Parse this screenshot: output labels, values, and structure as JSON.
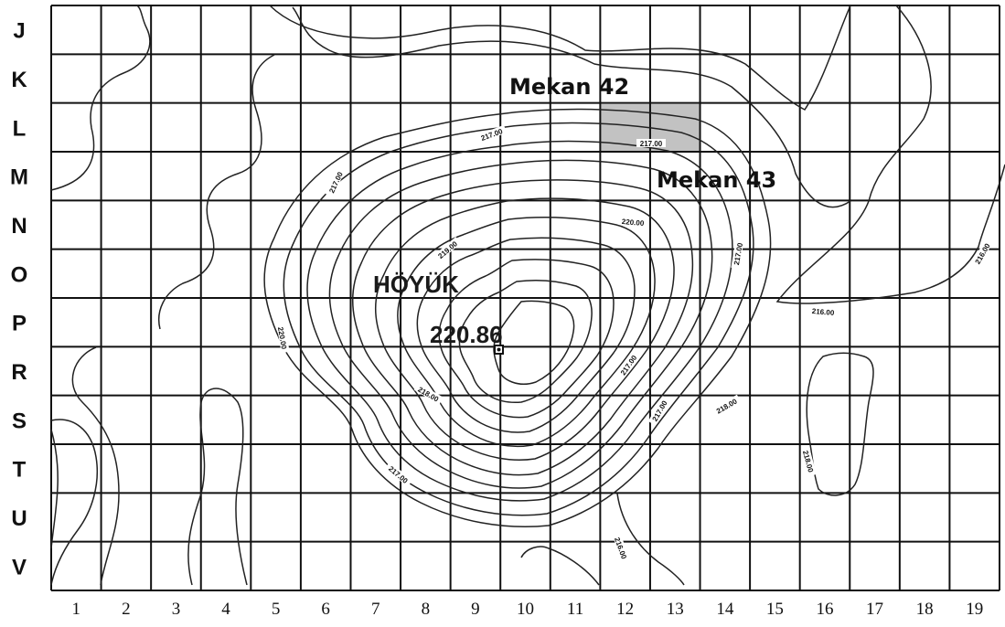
{
  "rows": [
    "J",
    "K",
    "L",
    "M",
    "N",
    "O",
    "P",
    "R",
    "S",
    "T",
    "U",
    "V"
  ],
  "columns": [
    "1",
    "2",
    "3",
    "4",
    "5",
    "6",
    "7",
    "8",
    "9",
    "10",
    "11",
    "12",
    "13",
    "14",
    "15",
    "16",
    "17",
    "18",
    "19"
  ],
  "site_label": "HÖYÜK",
  "summit_elevation": "220.86",
  "rooms": [
    {
      "name": "Mekan 42",
      "highlight_color": "#c2c2c2"
    },
    {
      "name": "Mekan 43"
    }
  ],
  "contour_labels": [
    "217.00",
    "217.00",
    "217.00",
    "219.00",
    "220.00",
    "217.00",
    "220.00",
    "218.00",
    "217.00",
    "217.00",
    "218.00",
    "216.00",
    "217.00",
    "216.00",
    "218.00",
    "216.00"
  ]
}
